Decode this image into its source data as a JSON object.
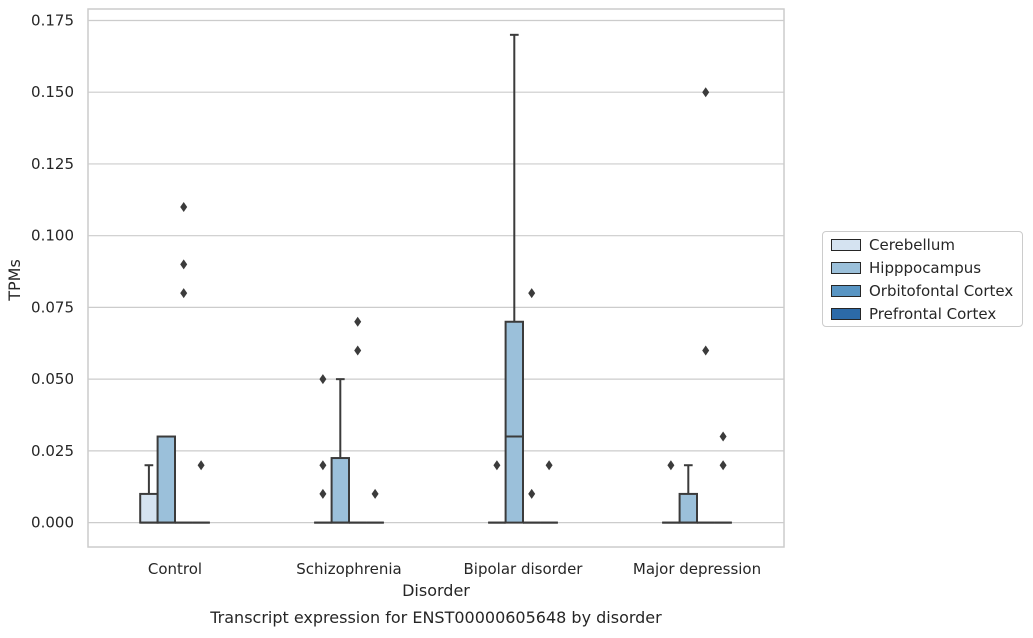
{
  "chart_data": {
    "type": "box",
    "title": "Transcript expression for ENST00000605648 by disorder",
    "xlabel": "Disorder",
    "ylabel": "TPMs",
    "ylim": [
      -0.0085,
      0.179
    ],
    "yticks": [
      "0.000",
      "0.025",
      "0.050",
      "0.075",
      "0.100",
      "0.125",
      "0.150",
      "0.175"
    ],
    "ytick_values": [
      0,
      0.025,
      0.05,
      0.075,
      0.1,
      0.125,
      0.15,
      0.175
    ],
    "grid": "horizontal",
    "legend_position": "right",
    "categories": [
      "Control",
      "Schizophrenia",
      "Bipolar disorder",
      "Major depression"
    ],
    "series": [
      {
        "name": "Cerebellum",
        "color": "#d5e3f1",
        "boxes": [
          {
            "category": "Control",
            "q1": 0,
            "median": 0,
            "q3": 0.01,
            "whisker_low": 0,
            "whisker_high": 0.02,
            "outliers": []
          },
          {
            "category": "Schizophrenia",
            "q1": 0,
            "median": 0,
            "q3": 0,
            "whisker_low": 0,
            "whisker_high": 0,
            "outliers": [
              0.01,
              0.02,
              0.05
            ]
          },
          {
            "category": "Bipolar disorder",
            "q1": 0,
            "median": 0,
            "q3": 0,
            "whisker_low": 0,
            "whisker_high": 0,
            "outliers": [
              0.02
            ]
          },
          {
            "category": "Major depression",
            "q1": 0,
            "median": 0,
            "q3": 0,
            "whisker_low": 0,
            "whisker_high": 0,
            "outliers": [
              0.02
            ]
          }
        ]
      },
      {
        "name": "Hipppocampus",
        "color": "#9bc0da",
        "boxes": [
          {
            "category": "Control",
            "q1": 0,
            "median": 0,
            "q3": 0.03,
            "whisker_low": 0,
            "whisker_high": 0.03,
            "outliers": []
          },
          {
            "category": "Schizophrenia",
            "q1": 0,
            "median": 0,
            "q3": 0.0225,
            "whisker_low": 0,
            "whisker_high": 0.05,
            "outliers": []
          },
          {
            "category": "Bipolar disorder",
            "q1": 0,
            "median": 0.03,
            "q3": 0.07,
            "whisker_low": 0,
            "whisker_high": 0.17,
            "outliers": []
          },
          {
            "category": "Major depression",
            "q1": 0,
            "median": 0,
            "q3": 0.01,
            "whisker_low": 0,
            "whisker_high": 0.02,
            "outliers": []
          }
        ]
      },
      {
        "name": "Orbitofontal Cortex",
        "color": "#5995c3",
        "boxes": [
          {
            "category": "Control",
            "q1": 0,
            "median": 0,
            "q3": 0,
            "whisker_low": 0,
            "whisker_high": 0,
            "outliers": [
              0.08,
              0.09,
              0.11
            ]
          },
          {
            "category": "Schizophrenia",
            "q1": 0,
            "median": 0,
            "q3": 0,
            "whisker_low": 0,
            "whisker_high": 0,
            "outliers": [
              0.06,
              0.07
            ]
          },
          {
            "category": "Bipolar disorder",
            "q1": 0,
            "median": 0,
            "q3": 0,
            "whisker_low": 0,
            "whisker_high": 0,
            "outliers": [
              0.01,
              0.08
            ]
          },
          {
            "category": "Major depression",
            "q1": 0,
            "median": 0,
            "q3": 0,
            "whisker_low": 0,
            "whisker_high": 0,
            "outliers": [
              0.06,
              0.15
            ]
          }
        ]
      },
      {
        "name": "Prefrontal Cortex",
        "color": "#2c6aa8",
        "boxes": [
          {
            "category": "Control",
            "q1": 0,
            "median": 0,
            "q3": 0,
            "whisker_low": 0,
            "whisker_high": 0,
            "outliers": [
              0.02
            ]
          },
          {
            "category": "Schizophrenia",
            "q1": 0,
            "median": 0,
            "q3": 0,
            "whisker_low": 0,
            "whisker_high": 0,
            "outliers": [
              0.01
            ]
          },
          {
            "category": "Bipolar disorder",
            "q1": 0,
            "median": 0,
            "q3": 0,
            "whisker_low": 0,
            "whisker_high": 0,
            "outliers": [
              0.02
            ]
          },
          {
            "category": "Major depression",
            "q1": 0,
            "median": 0,
            "q3": 0,
            "whisker_low": 0,
            "whisker_high": 0,
            "outliers": [
              0.02,
              0.03
            ]
          }
        ]
      }
    ]
  }
}
